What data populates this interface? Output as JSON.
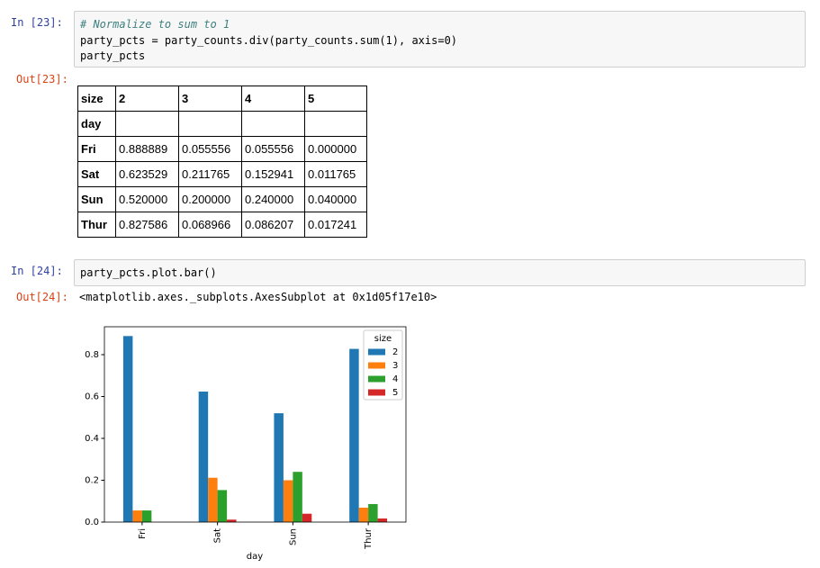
{
  "cells": [
    {
      "prompt_in": "In [23]:",
      "code": [
        "# Normalize to sum to 1",
        "party_pcts = party_counts.div(party_counts.sum(1), axis=0)",
        "party_pcts"
      ],
      "prompt_out": "Out[23]:",
      "table": {
        "columns": [
          "size",
          "2",
          "3",
          "4",
          "5"
        ],
        "index_name": "day",
        "rows": [
          [
            "Fri",
            "0.888889",
            "0.055556",
            "0.055556",
            "0.000000"
          ],
          [
            "Sat",
            "0.623529",
            "0.211765",
            "0.152941",
            "0.011765"
          ],
          [
            "Sun",
            "0.520000",
            "0.200000",
            "0.240000",
            "0.040000"
          ],
          [
            "Thur",
            "0.827586",
            "0.068966",
            "0.086207",
            "0.017241"
          ]
        ]
      }
    },
    {
      "prompt_in": "In [24]:",
      "code": [
        "party_pcts.plot.bar()"
      ],
      "prompt_out": "Out[24]:",
      "output": "<matplotlib.axes._subplots.AxesSubplot at 0x1d05f17e10>"
    }
  ],
  "chart_data": {
    "type": "bar",
    "xlabel": "day",
    "legend_title": "size",
    "legend": "upper right",
    "categories": [
      "Fri",
      "Sat",
      "Sun",
      "Thur"
    ],
    "series": [
      {
        "name": "2",
        "color": "#1f77b4",
        "values": [
          0.888889,
          0.623529,
          0.52,
          0.827586
        ]
      },
      {
        "name": "3",
        "color": "#ff7f0e",
        "values": [
          0.055556,
          0.211765,
          0.2,
          0.068966
        ]
      },
      {
        "name": "4",
        "color": "#2ca02c",
        "values": [
          0.055556,
          0.152941,
          0.24,
          0.086207
        ]
      },
      {
        "name": "5",
        "color": "#d62728",
        "values": [
          0.0,
          0.011765,
          0.04,
          0.017241
        ]
      }
    ],
    "ylim": [
      0,
      0.9333
    ],
    "yticks": [
      {
        "value": 0,
        "label": "0.0"
      },
      0.2,
      0.4,
      0.6,
      0.8
    ]
  }
}
